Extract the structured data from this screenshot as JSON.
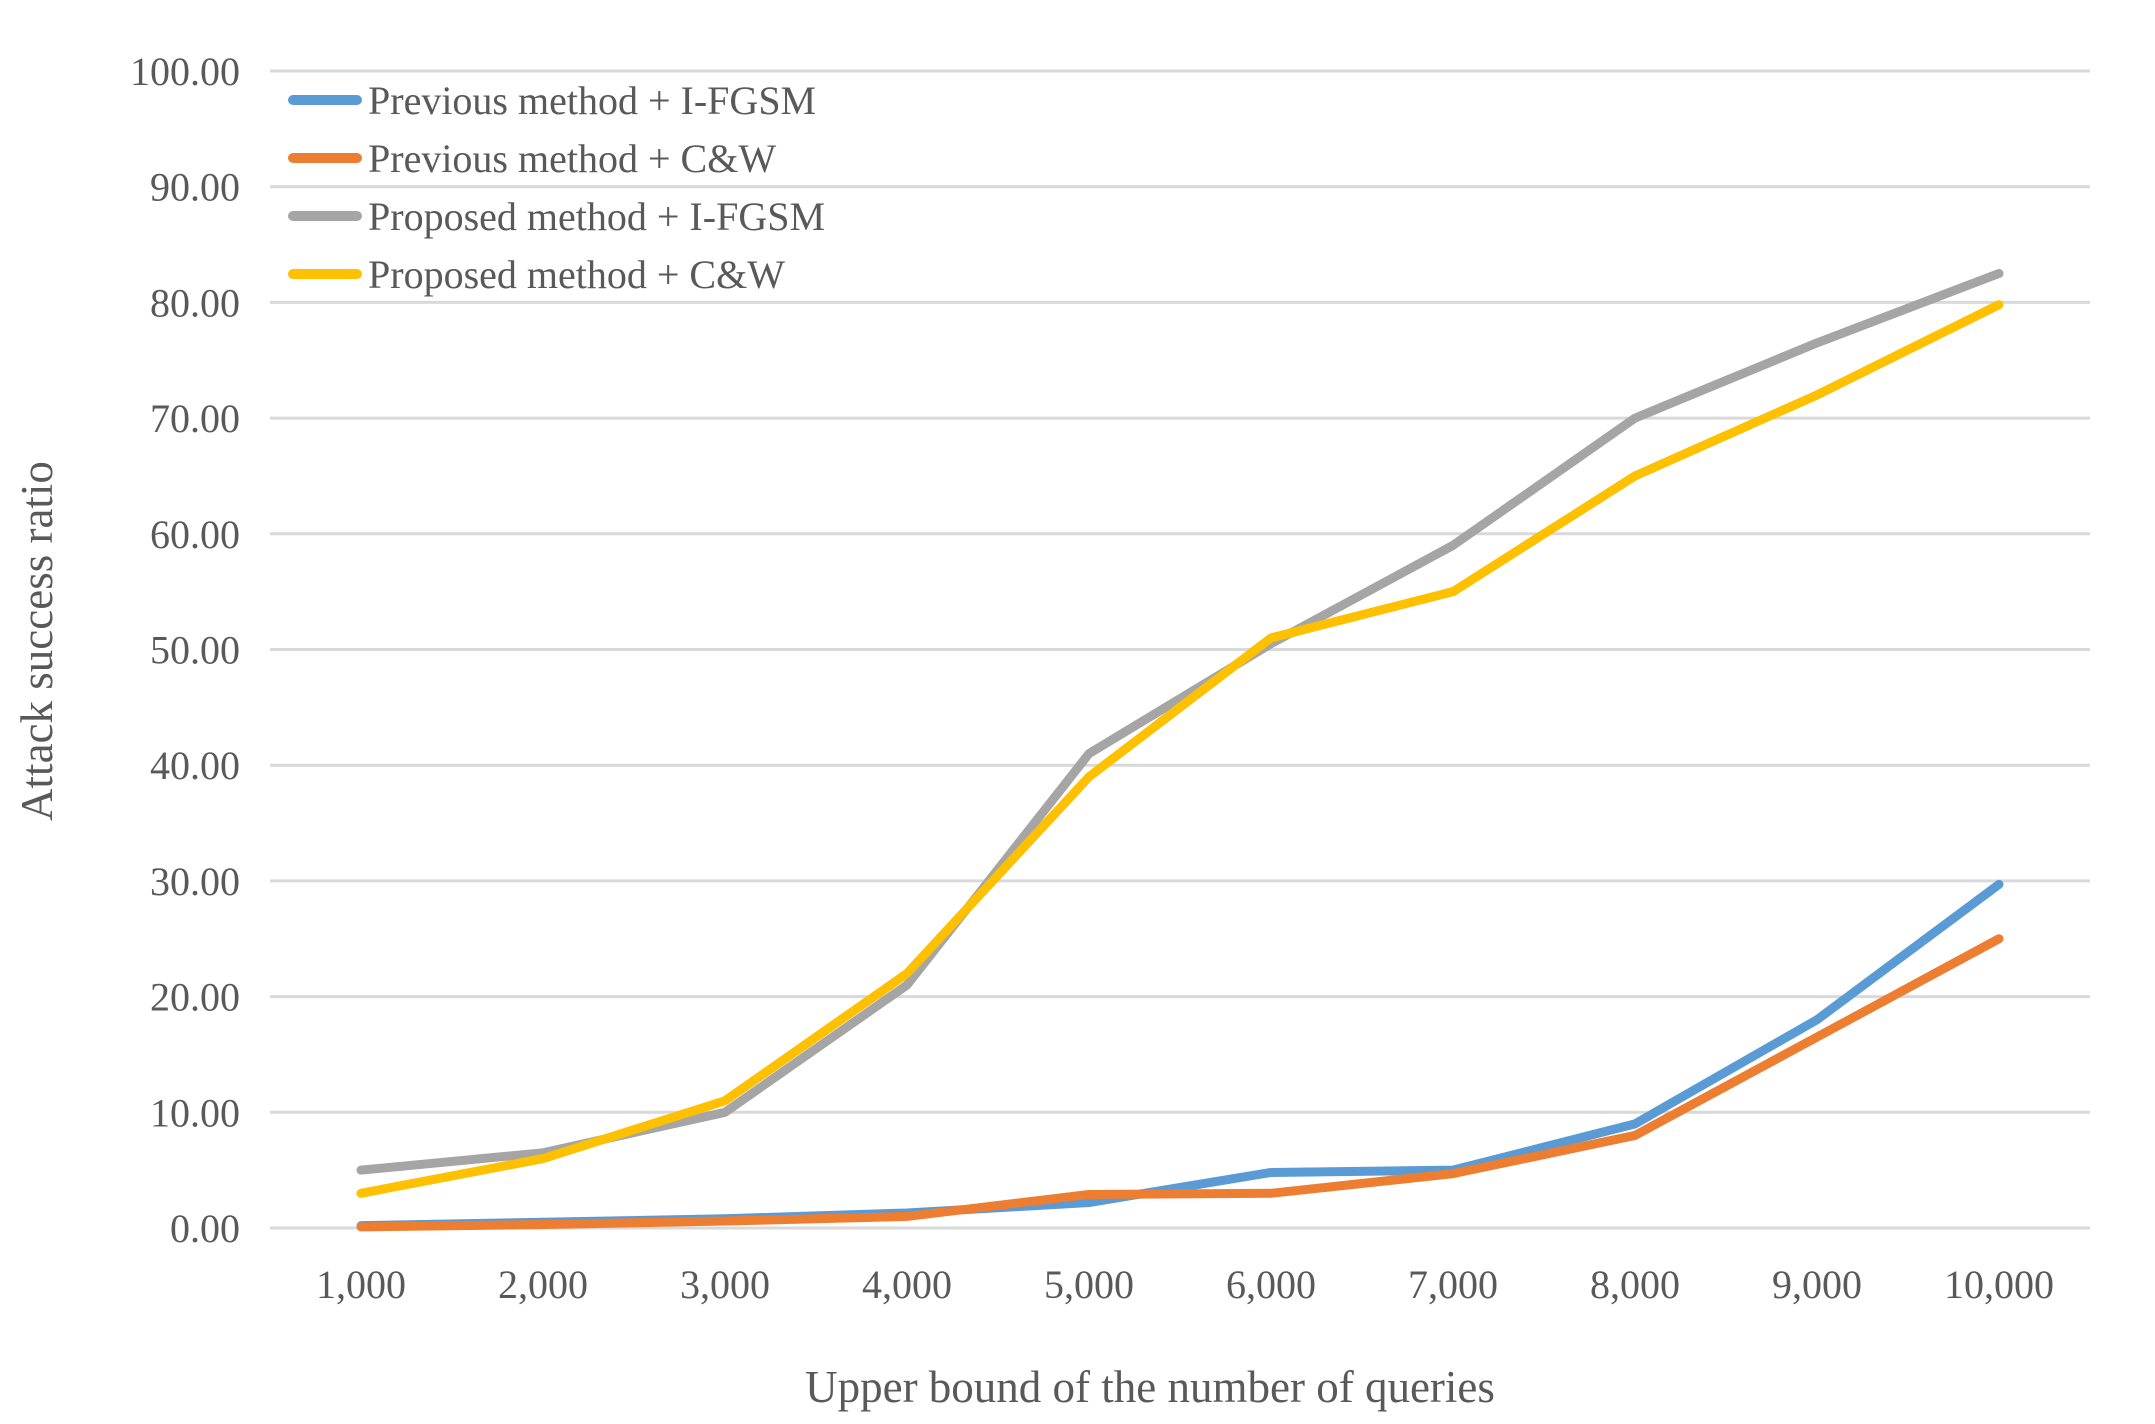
{
  "chart_data": {
    "type": "line",
    "title": "",
    "xlabel": "Upper bound of the number of queries",
    "ylabel": "Attack success ratio",
    "x_categories": [
      "1,000",
      "2,000",
      "3,000",
      "4,000",
      "5,000",
      "6,000",
      "7,000",
      "8,000",
      "9,000",
      "10,000"
    ],
    "x_values": [
      1000,
      2000,
      3000,
      4000,
      5000,
      6000,
      7000,
      8000,
      9000,
      10000
    ],
    "ylim": [
      0,
      100
    ],
    "y_tick_step": 10,
    "y_tick_labels": [
      "0.00",
      "10.00",
      "20.00",
      "30.00",
      "40.00",
      "50.00",
      "60.00",
      "70.00",
      "80.00",
      "90.00",
      "100.00"
    ],
    "grid": "horizontal",
    "gridline_color": "#D9D9D9",
    "text_color": "#595959",
    "legend_position": "top-left-inside",
    "series": [
      {
        "name": "Previous method + I-FGSM",
        "color": "#5B9BD5",
        "values": [
          0.2,
          0.5,
          0.8,
          1.3,
          2.2,
          4.8,
          5.0,
          9.0,
          18.0,
          29.7
        ]
      },
      {
        "name": "Previous method + C&W",
        "color": "#ED7D31",
        "values": [
          0.1,
          0.3,
          0.6,
          1.0,
          2.9,
          3.0,
          4.7,
          8.0,
          16.5,
          25.0
        ]
      },
      {
        "name": "Proposed method + I-FGSM",
        "color": "#A5A5A5",
        "values": [
          5.0,
          6.5,
          10.0,
          21.0,
          41.0,
          50.5,
          59.0,
          70.0,
          76.5,
          82.5
        ]
      },
      {
        "name": "Proposed method + C&W",
        "color": "#FFC000",
        "values": [
          3.0,
          6.0,
          11.0,
          22.0,
          39.0,
          51.0,
          55.0,
          65.0,
          72.0,
          79.8
        ]
      }
    ]
  }
}
